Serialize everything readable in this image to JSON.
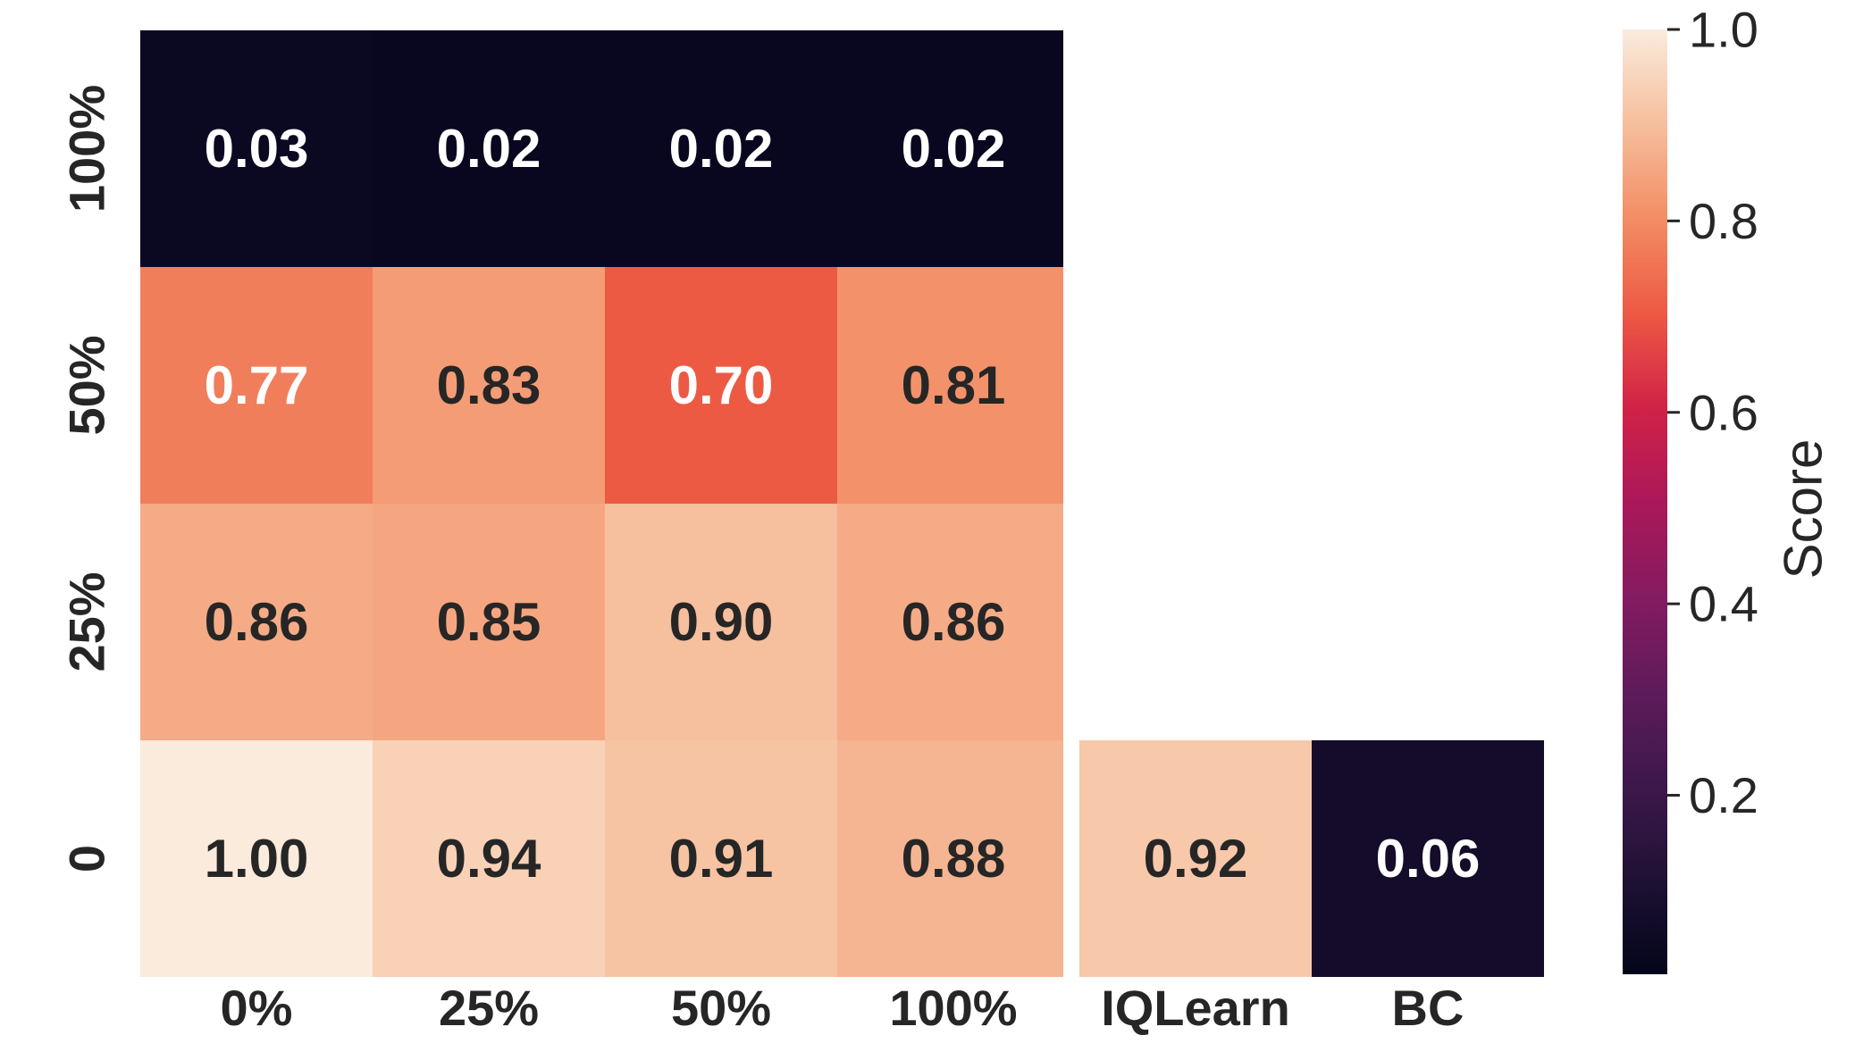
{
  "chart_data": {
    "type": "heatmap",
    "colormap": "rocket",
    "vmin": 0.0,
    "vmax": 1.0,
    "y_categories": [
      "100%",
      "50%",
      "25%",
      "0"
    ],
    "x_categories": [
      "0%",
      "25%",
      "50%",
      "100%"
    ],
    "values": [
      [
        0.03,
        0.02,
        0.02,
        0.02
      ],
      [
        0.77,
        0.83,
        0.7,
        0.81
      ],
      [
        0.86,
        0.85,
        0.9,
        0.86
      ],
      [
        1.0,
        0.94,
        0.91,
        0.88
      ]
    ],
    "baselines": {
      "row": "0",
      "categories": [
        "IQLearn",
        "BC"
      ],
      "values": [
        0.92,
        0.06
      ]
    },
    "colorbar": {
      "label": "Score",
      "ticks": [
        0.2,
        0.4,
        0.6,
        0.8,
        1.0
      ],
      "tick_labels": [
        "0.2",
        "0.4",
        "0.6",
        "0.8",
        "1.0"
      ]
    }
  }
}
